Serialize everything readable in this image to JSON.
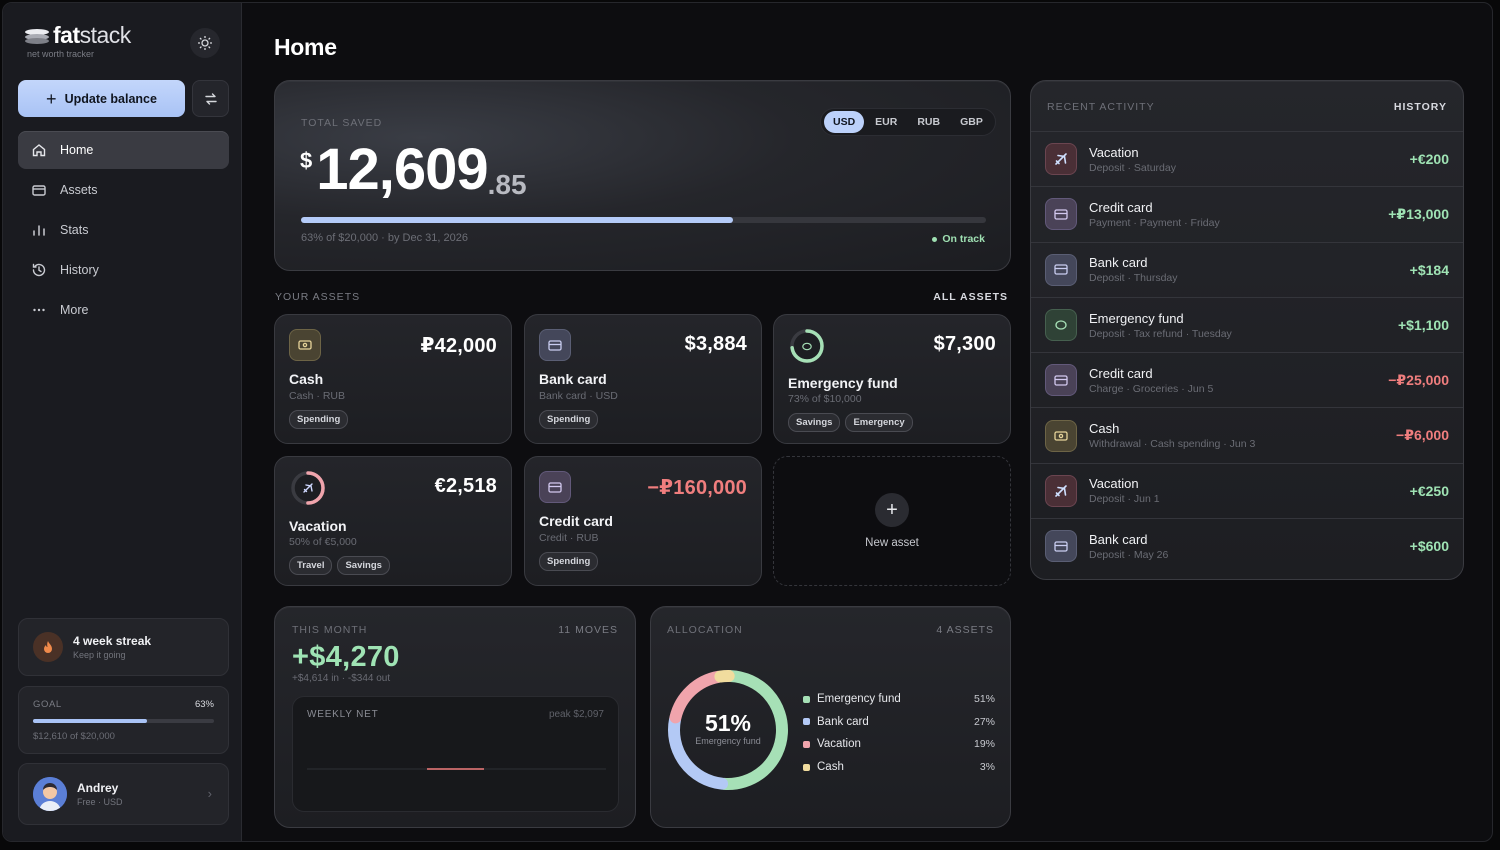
{
  "brand": {
    "name_bold": "fat",
    "name_light": "stack",
    "tagline": "net worth tracker"
  },
  "sidebar": {
    "update_label": "Update balance",
    "nav": [
      {
        "label": "Home",
        "icon": "home-icon",
        "active": true
      },
      {
        "label": "Assets",
        "icon": "wallet-icon",
        "active": false
      },
      {
        "label": "Stats",
        "icon": "bar-chart-icon",
        "active": false
      },
      {
        "label": "History",
        "icon": "history-icon",
        "active": false
      },
      {
        "label": "More",
        "icon": "more-icon",
        "active": false
      }
    ],
    "streak": {
      "title": "4 week streak",
      "subtitle": "Keep it going"
    },
    "goal": {
      "label": "GOAL",
      "percent_text": "63%",
      "progress": 0.63,
      "subtitle": "$12,610 of $20,000"
    },
    "user": {
      "name": "Andrey",
      "plan": "Free · USD"
    }
  },
  "page": {
    "title": "Home"
  },
  "total": {
    "label": "TOTAL SAVED",
    "currency_symbol": "$",
    "amount": "12,609",
    "cents": ".85",
    "currencies": [
      "USD",
      "EUR",
      "RUB",
      "GBP"
    ],
    "selected_currency": "USD",
    "progress": 0.63,
    "subtitle": "63% of $20,000 · by Dec 31, 2026",
    "status": "On track"
  },
  "assets_section": {
    "label": "YOUR ASSETS",
    "link": "ALL ASSETS"
  },
  "assets": [
    {
      "name": "Cash",
      "sub": "Cash · RUB",
      "value": "₽42,000",
      "tags": [
        "Spending"
      ],
      "icon": "cash-icon"
    },
    {
      "name": "Bank card",
      "sub": "Bank card · USD",
      "value": "$3,884",
      "tags": [
        "Spending"
      ],
      "icon": "card-icon"
    },
    {
      "name": "Emergency fund",
      "sub": "73% of $10,000",
      "value": "$7,300",
      "tags": [
        "Savings",
        "Emergency"
      ],
      "icon": "piggy-icon",
      "progress": 0.73
    },
    {
      "name": "Vacation",
      "sub": "50% of €5,000",
      "value": "€2,518",
      "tags": [
        "Travel",
        "Savings"
      ],
      "icon": "plane-icon",
      "progress": 0.5
    },
    {
      "name": "Credit card",
      "sub": "Credit · RUB",
      "value": "−₽160,000",
      "tags": [
        "Spending"
      ],
      "icon": "card-icon"
    }
  ],
  "new_asset": {
    "label": "New asset"
  },
  "month": {
    "label": "THIS MONTH",
    "moves": "11 MOVES",
    "value": "+$4,270",
    "sub": "+$4,614 in · -$344 out",
    "weekly_label": "WEEKLY NET",
    "weekly_peak": "peak $2,097"
  },
  "allocation": {
    "label": "ALLOCATION",
    "count": "4 ASSETS",
    "center_pct": "51%",
    "center_label": "Emergency fund",
    "items": [
      {
        "name": "Emergency fund",
        "pct_text": "51%",
        "value": 51,
        "color": "#a6e0b6"
      },
      {
        "name": "Bank card",
        "pct_text": "27%",
        "value": 27,
        "color": "#b3c9f5"
      },
      {
        "name": "Vacation",
        "pct_text": "19%",
        "value": 19,
        "color": "#f0a4ac"
      },
      {
        "name": "Cash",
        "pct_text": "3%",
        "value": 3,
        "color": "#f1dc9e"
      }
    ]
  },
  "activity": {
    "label": "RECENT ACTIVITY",
    "link": "HISTORY",
    "items": [
      {
        "name": "Vacation",
        "sub": "Deposit · Saturday",
        "amount": "+€200",
        "type": "vac",
        "sign": "pos"
      },
      {
        "name": "Credit card",
        "sub": "Payment · Payment · Friday",
        "amount": "+₽13,000",
        "type": "credit",
        "sign": "pos"
      },
      {
        "name": "Bank card",
        "sub": "Deposit · Thursday",
        "amount": "+$184",
        "type": "card",
        "sign": "pos"
      },
      {
        "name": "Emergency fund",
        "sub": "Deposit · Tax refund · Tuesday",
        "amount": "+$1,100",
        "type": "emer",
        "sign": "pos"
      },
      {
        "name": "Credit card",
        "sub": "Charge · Groceries · Jun 5",
        "amount": "−₽25,000",
        "type": "credit",
        "sign": "neg"
      },
      {
        "name": "Cash",
        "sub": "Withdrawal · Cash spending · Jun 3",
        "amount": "−₽6,000",
        "type": "cash",
        "sign": "neg"
      },
      {
        "name": "Vacation",
        "sub": "Deposit · Jun 1",
        "amount": "+€250",
        "type": "vac",
        "sign": "pos"
      },
      {
        "name": "Bank card",
        "sub": "Deposit · May 26",
        "amount": "+$600",
        "type": "card",
        "sign": "pos"
      }
    ]
  }
}
